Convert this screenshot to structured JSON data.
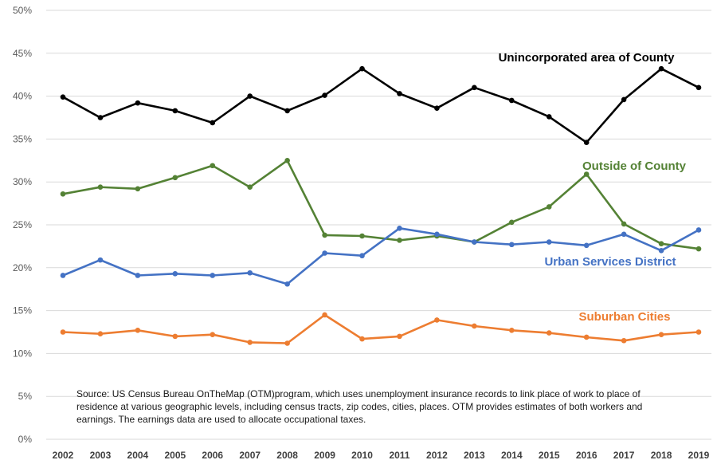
{
  "chart_data": {
    "type": "line",
    "x": [
      "2002",
      "2003",
      "2004",
      "2005",
      "2006",
      "2007",
      "2008",
      "2009",
      "2010",
      "2011",
      "2012",
      "2013",
      "2014",
      "2015",
      "2016",
      "2017",
      "2018",
      "2019"
    ],
    "ylim": [
      0,
      50
    ],
    "yticks": [
      0,
      5,
      10,
      15,
      20,
      25,
      30,
      35,
      40,
      45,
      50
    ],
    "ytick_labels": [
      "0%",
      "5%",
      "10%",
      "15%",
      "20%",
      "25%",
      "30%",
      "35%",
      "40%",
      "45%",
      "50%"
    ],
    "grid": true,
    "legend": "none",
    "series": [
      {
        "name": "Unincorporated area of County",
        "color": "#000000",
        "values": [
          39.9,
          37.5,
          39.2,
          38.3,
          36.9,
          40.0,
          38.3,
          40.1,
          43.2,
          40.3,
          38.6,
          41.0,
          39.5,
          37.6,
          34.6,
          39.6,
          43.2,
          41.0
        ]
      },
      {
        "name": "Outside of County",
        "color": "#548235",
        "values": [
          28.6,
          29.4,
          29.2,
          30.5,
          31.9,
          29.4,
          32.5,
          23.8,
          23.7,
          23.2,
          23.7,
          23.0,
          25.3,
          27.1,
          30.9,
          25.1,
          22.8,
          22.2
        ]
      },
      {
        "name": "Urban Services District",
        "color": "#4472C4",
        "values": [
          19.1,
          20.9,
          19.1,
          19.3,
          19.1,
          19.4,
          18.1,
          21.7,
          21.4,
          24.6,
          23.9,
          23.0,
          22.7,
          23.0,
          22.6,
          23.9,
          22.0,
          24.4
        ]
      },
      {
        "name": "Suburban Cities",
        "color": "#ED7D31",
        "values": [
          12.5,
          12.3,
          12.7,
          12.0,
          12.2,
          11.3,
          11.2,
          14.5,
          11.7,
          12.0,
          13.9,
          13.2,
          12.7,
          12.4,
          11.9,
          11.5,
          12.2,
          12.5
        ]
      }
    ],
    "source_note": "Source: US Census Bureau OnTheMap (OTM)program, which uses unemployment insurance records to link place of work to place of residence at various geographic levels, including census tracts, zip codes, cities, places. OTM provides estimates of both workers and earnings. The earnings data are used to allocate occupational taxes."
  }
}
